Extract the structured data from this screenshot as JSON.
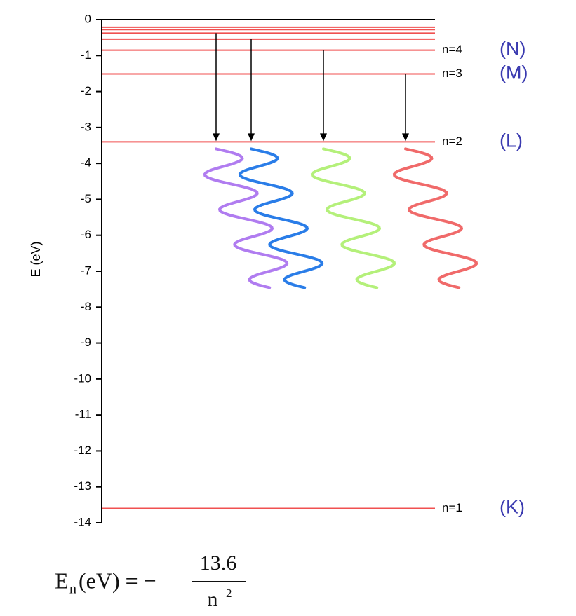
{
  "chart_data": {
    "type": "levels",
    "ylabel": "E (eV)",
    "ylim": [
      -14,
      0
    ],
    "yticks": [
      -14,
      -13,
      -12,
      -11,
      -10,
      -9,
      -8,
      -7,
      -6,
      -5,
      -4,
      -3,
      -2,
      -1,
      0
    ],
    "levels": [
      {
        "label": "n=1",
        "shell": "(K)",
        "value": -13.6
      },
      {
        "label": "n=2",
        "shell": "(L)",
        "value": -3.4
      },
      {
        "label": "n=3",
        "shell": "(M)",
        "value": -1.51
      },
      {
        "label": "n=4",
        "shell": "(N)",
        "value": -0.85
      },
      {
        "label": null,
        "shell": null,
        "value": -0.544
      },
      {
        "label": null,
        "shell": null,
        "value": -0.378
      },
      {
        "label": null,
        "shell": null,
        "value": -0.278
      },
      {
        "label": null,
        "shell": null,
        "value": -0.213
      }
    ]
  },
  "formula": {
    "symbol": "E",
    "subscript": "n",
    "rest": "(eV) = −",
    "numerator": "13.6",
    "denominator": "n",
    "exponent": "2"
  }
}
